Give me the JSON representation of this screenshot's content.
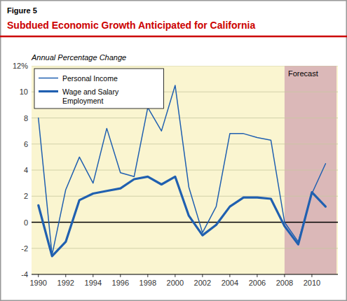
{
  "chart_data": {
    "type": "line",
    "subtitle": "Figure 5",
    "title": "Subdued Economic Growth Anticipated for California",
    "y_label": "Annual Percentage Change",
    "x": [
      1990,
      1991,
      1992,
      1993,
      1994,
      1995,
      1996,
      1997,
      1998,
      1999,
      2000,
      2001,
      2002,
      2003,
      2004,
      2005,
      2006,
      2007,
      2008,
      2009,
      2010,
      2011
    ],
    "series": [
      {
        "name": "Personal Income",
        "color": "#2060b0",
        "line_style": "solid",
        "values": [
          8.0,
          -2.5,
          2.5,
          5.0,
          3.0,
          7.2,
          3.8,
          3.5,
          8.8,
          7.0,
          10.5,
          2.7,
          -0.8,
          1.2,
          6.8,
          6.8,
          6.5,
          6.3,
          0.0,
          -1.5,
          2.2,
          4.5
        ]
      },
      {
        "name": "Wage and Salary\nEmployment",
        "color": "#2060b0",
        "line_style": "solid",
        "values": [
          1.3,
          -2.6,
          -1.5,
          1.7,
          2.2,
          2.4,
          2.6,
          3.3,
          3.5,
          2.9,
          3.5,
          0.5,
          -1.0,
          -0.2,
          1.2,
          1.9,
          1.9,
          1.8,
          -0.3,
          -1.7,
          2.3,
          1.2
        ]
      }
    ],
    "annotations": [
      {
        "text": "Forecast",
        "x": 2008,
        "x_end": 2011.8
      }
    ],
    "xlim": [
      1989.5,
      2011.9
    ],
    "xticks": [
      1990,
      1992,
      1994,
      1996,
      1998,
      2000,
      2002,
      2004,
      2006,
      2008,
      2010
    ],
    "ylim": [
      -4,
      12
    ],
    "yticks": [
      -4,
      -2,
      0,
      2,
      4,
      6,
      8,
      10,
      {
        "value": 12,
        "label": "12%"
      }
    ],
    "grid": true,
    "legend": "upper left"
  }
}
